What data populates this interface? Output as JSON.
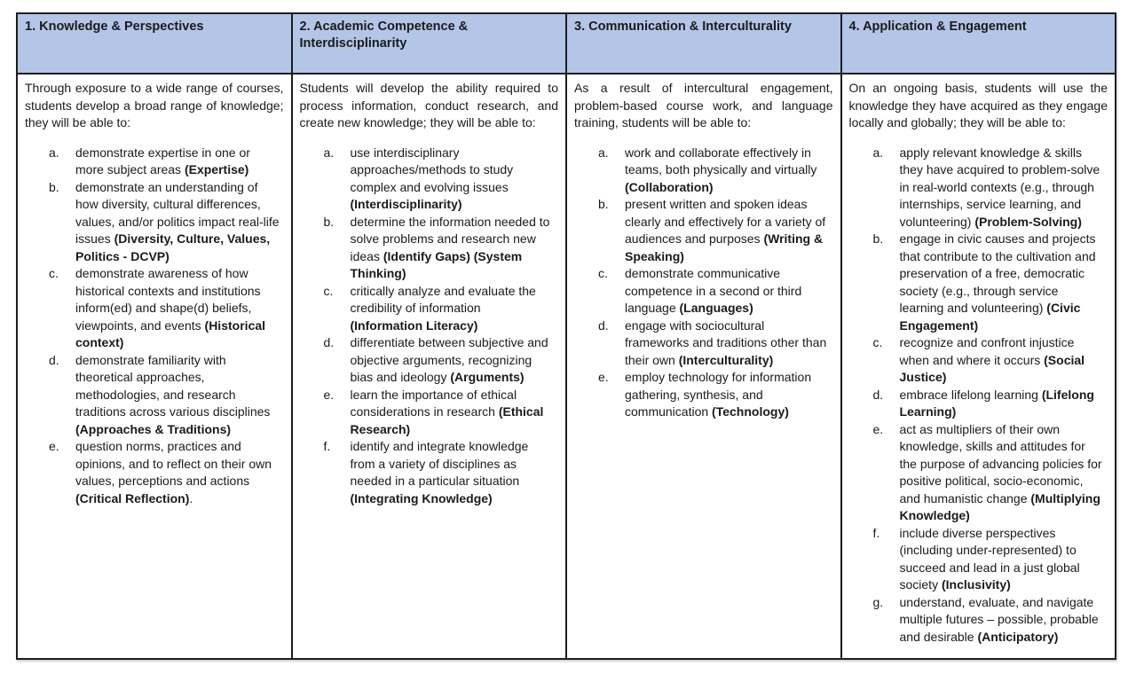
{
  "colors": {
    "header_bg": "#b4c6e7",
    "border": "#1c1c1c",
    "text": "#1a1a1a"
  },
  "columns": [
    {
      "header": "1. Knowledge & Perspectives",
      "intro": "Through exposure to a wide range of courses, students develop a broad range of knowledge; they will be able to:",
      "items": [
        {
          "marker": "a.",
          "pre": "demonstrate expertise in one or more subject areas ",
          "bold": "(Expertise)",
          "post": ""
        },
        {
          "marker": "b.",
          "pre": "demonstrate an understanding of how diversity, cultural differences, values, and/or politics impact real-life issues ",
          "bold": "(Diversity, Culture, Values, Politics - DCVP)",
          "post": ""
        },
        {
          "marker": "c.",
          "pre": "demonstrate awareness of how historical contexts and institutions inform(ed) and shape(d) beliefs, viewpoints, and events ",
          "bold": "(Historical context)",
          "post": ""
        },
        {
          "marker": "d.",
          "pre": "demonstrate familiarity with theoretical approaches, methodologies, and research traditions across various disciplines ",
          "bold": "(Approaches & Traditions)",
          "post": ""
        },
        {
          "marker": "e.",
          "pre": "question norms, practices and opinions, and to reflect on their own values, perceptions and actions ",
          "bold": "(Critical Reflection)",
          "post": "."
        }
      ]
    },
    {
      "header": "2. Academic Competence & Interdisciplinarity",
      "intro": "Students will develop the ability required to process information, conduct research, and create new knowledge; they will be able to:",
      "items": [
        {
          "marker": "a.",
          "pre": "use interdisciplinary approaches/methods to study complex and evolving issues ",
          "bold": "(Interdisciplinarity)",
          "post": ""
        },
        {
          "marker": "b.",
          "pre": "determine the information needed to solve problems and research new ideas ",
          "bold": "(Identify Gaps) (System Thinking)",
          "post": ""
        },
        {
          "marker": "c.",
          "pre": "critically analyze and evaluate the credibility of information ",
          "bold": "(Information Literacy)",
          "post": ""
        },
        {
          "marker": "d.",
          "pre": "differentiate between subjective and objective arguments, recognizing bias and ideology ",
          "bold": "(Arguments)",
          "post": ""
        },
        {
          "marker": "e.",
          "pre": "learn the importance of ethical considerations in research ",
          "bold": "(Ethical Research)",
          "post": ""
        },
        {
          "marker": "f.",
          "pre": "identify and integrate knowledge from a variety of disciplines as needed in a particular situation ",
          "bold": "(Integrating Knowledge)",
          "post": ""
        }
      ]
    },
    {
      "header": "3. Communication & Interculturality",
      "intro": "As a result of intercultural engagement, problem-based course work, and language training, students will be able to:",
      "items": [
        {
          "marker": "a.",
          "pre": "work and collaborate effectively in teams, both physically and virtually ",
          "bold": "(Collaboration)",
          "post": ""
        },
        {
          "marker": "b.",
          "pre": "present written and spoken ideas clearly and effectively for a variety of audiences and purposes ",
          "bold": "(Writing & Speaking)",
          "post": ""
        },
        {
          "marker": "c.",
          "pre": "demonstrate communicative competence in a second or third language ",
          "bold": "(Languages)",
          "post": ""
        },
        {
          "marker": "d.",
          "pre": "engage with sociocultural frameworks and traditions other than their own ",
          "bold": "(Interculturality)",
          "post": ""
        },
        {
          "marker": "e.",
          "pre": "employ technology for information gathering, synthesis, and communication ",
          "bold": "(Technology)",
          "post": ""
        }
      ]
    },
    {
      "header": "4. Application & Engagement",
      "intro": "On an ongoing basis, students will use the knowledge they have acquired as they engage locally and globally; they will be able to:",
      "items": [
        {
          "marker": "a.",
          "pre": "apply relevant knowledge & skills they have acquired to problem-solve in real-world contexts (e.g., through internships, service learning, and volunteering) ",
          "bold": "(Problem-Solving)",
          "post": ""
        },
        {
          "marker": "b.",
          "pre": "engage in civic causes and projects that contribute to the cultivation and preservation of a free, democratic society (e.g., through service learning and volunteering) ",
          "bold": "(Civic Engagement)",
          "post": ""
        },
        {
          "marker": "c.",
          "pre": "recognize and confront injustice when and where it occurs ",
          "bold": "(Social Justice)",
          "post": ""
        },
        {
          "marker": "d.",
          "pre": "embrace lifelong learning ",
          "bold": "(Lifelong Learning)",
          "post": ""
        },
        {
          "marker": "e.",
          "pre": "act as multipliers of their own knowledge, skills and attitudes for the purpose of advancing policies for positive political, socio-economic, and humanistic change ",
          "bold": "(Multiplying Knowledge)",
          "post": ""
        },
        {
          "marker": "f.",
          "pre": "include diverse perspectives (including under-represented) to succeed and lead in a just global society ",
          "bold": "(Inclusivity)",
          "post": ""
        },
        {
          "marker": "g.",
          "pre": "understand, evaluate, and navigate multiple futures – possible, probable and desirable ",
          "bold": "(Anticipatory)",
          "post": ""
        }
      ]
    }
  ]
}
